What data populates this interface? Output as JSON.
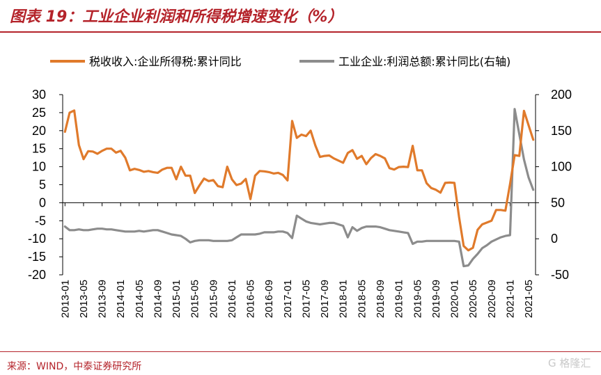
{
  "title": "图表 19：工业企业利润和所得税增速变化（%）",
  "source": "来源：WIND，中泰证券研究所",
  "watermark": "G 格隆汇",
  "colors": {
    "series_tax": "#e07a2b",
    "series_profit": "#8c8c8c",
    "accent": "#b4232a"
  },
  "chart_data": {
    "type": "line",
    "title": "",
    "xlabel": "",
    "ylabel": "",
    "y_left": {
      "lim": [
        -20,
        30
      ],
      "ticks": [
        -20,
        -15,
        -10,
        -5,
        0,
        5,
        10,
        15,
        20,
        25,
        30
      ]
    },
    "y_right": {
      "lim": [
        -50,
        200
      ],
      "ticks": [
        -50,
        0,
        50,
        100,
        150,
        200
      ]
    },
    "x_tick_labels": [
      "2013-01",
      "2013-05",
      "2013-09",
      "2014-01",
      "2014-05",
      "2014-09",
      "2015-01",
      "2015-05",
      "2015-09",
      "2016-01",
      "2016-05",
      "2016-09",
      "2017-01",
      "2017-05",
      "2017-09",
      "2018-01",
      "2018-05",
      "2018-09",
      "2019-01",
      "2019-05",
      "2019-09",
      "2020-01",
      "2020-05",
      "2020-09",
      "2021-01",
      "2021-05"
    ],
    "legend_position": "top",
    "series": [
      {
        "name": "税收收入:企业所得税:累计同比",
        "axis": "left",
        "x": [
          "2013-01",
          "2013-02",
          "2013-03",
          "2013-04",
          "2013-05",
          "2013-06",
          "2013-07",
          "2013-08",
          "2013-09",
          "2013-10",
          "2013-11",
          "2013-12",
          "2014-01",
          "2014-02",
          "2014-03",
          "2014-04",
          "2014-05",
          "2014-06",
          "2014-07",
          "2014-08",
          "2014-09",
          "2014-10",
          "2014-11",
          "2014-12",
          "2015-01",
          "2015-02",
          "2015-03",
          "2015-04",
          "2015-05",
          "2015-06",
          "2015-07",
          "2015-08",
          "2015-09",
          "2015-10",
          "2015-11",
          "2015-12",
          "2016-01",
          "2016-02",
          "2016-03",
          "2016-04",
          "2016-05",
          "2016-06",
          "2016-07",
          "2016-08",
          "2016-09",
          "2016-10",
          "2016-11",
          "2016-12",
          "2017-01",
          "2017-02",
          "2017-03",
          "2017-04",
          "2017-05",
          "2017-06",
          "2017-07",
          "2017-08",
          "2017-09",
          "2017-10",
          "2017-11",
          "2017-12",
          "2018-01",
          "2018-02",
          "2018-03",
          "2018-04",
          "2018-05",
          "2018-06",
          "2018-07",
          "2018-08",
          "2018-09",
          "2018-10",
          "2018-11",
          "2018-12",
          "2019-01",
          "2019-02",
          "2019-03",
          "2019-04",
          "2019-05",
          "2019-06",
          "2019-07",
          "2019-08",
          "2019-09",
          "2019-10",
          "2019-11",
          "2019-12",
          "2020-01",
          "2020-02",
          "2020-03",
          "2020-04",
          "2020-05",
          "2020-06",
          "2020-07",
          "2020-08",
          "2020-09",
          "2020-10",
          "2020-11",
          "2020-12",
          "2021-01",
          "2021-02",
          "2021-03",
          "2021-04",
          "2021-05",
          "2021-06"
        ],
        "values": [
          19.7,
          25.0,
          25.6,
          16.0,
          12.1,
          14.3,
          14.2,
          13.6,
          14.4,
          15.0,
          15.0,
          13.9,
          14.4,
          12.5,
          9.0,
          9.4,
          9.1,
          8.6,
          8.8,
          8.5,
          8.3,
          9.2,
          9.7,
          9.7,
          6.5,
          10.0,
          7.5,
          7.5,
          2.7,
          4.8,
          6.7,
          6.0,
          6.3,
          4.6,
          4.3,
          10.0,
          6.5,
          4.9,
          5.3,
          6.6,
          1.0,
          7.5,
          8.8,
          8.7,
          8.5,
          8.1,
          8.3,
          7.7,
          6.2,
          22.7,
          18.0,
          18.9,
          18.5,
          20.0,
          15.9,
          12.7,
          13.0,
          13.1,
          12.3,
          11.7,
          11.1,
          13.8,
          14.6,
          12.2,
          13.0,
          10.7,
          12.4,
          13.5,
          13.0,
          12.3,
          9.6,
          9.2,
          9.9,
          10.0,
          9.9,
          15.8,
          9.0,
          9.0,
          5.4,
          4.1,
          3.6,
          2.8,
          5.5,
          5.6,
          5.5,
          -4.0,
          -12.0,
          -13.2,
          -12.5,
          -7.5,
          -6.0,
          -5.5,
          -5.0,
          -2.0,
          -2.0,
          -2.2,
          5.2,
          13.2,
          13.0,
          25.5,
          21.5,
          17.5
        ]
      },
      {
        "name": "工业企业:利润总额:累计同比(右轴)",
        "axis": "right",
        "x": [
          "2013-01",
          "2013-02",
          "2013-03",
          "2013-04",
          "2013-05",
          "2013-06",
          "2013-07",
          "2013-08",
          "2013-09",
          "2013-10",
          "2013-11",
          "2013-12",
          "2014-01",
          "2014-02",
          "2014-03",
          "2014-04",
          "2014-05",
          "2014-06",
          "2014-07",
          "2014-08",
          "2014-09",
          "2014-10",
          "2014-11",
          "2014-12",
          "2015-01",
          "2015-02",
          "2015-03",
          "2015-04",
          "2015-05",
          "2015-06",
          "2015-07",
          "2015-08",
          "2015-09",
          "2015-10",
          "2015-11",
          "2015-12",
          "2016-01",
          "2016-02",
          "2016-03",
          "2016-04",
          "2016-05",
          "2016-06",
          "2016-07",
          "2016-08",
          "2016-09",
          "2016-10",
          "2016-11",
          "2016-12",
          "2017-01",
          "2017-02",
          "2017-03",
          "2017-04",
          "2017-05",
          "2017-06",
          "2017-07",
          "2017-08",
          "2017-09",
          "2017-10",
          "2017-11",
          "2017-12",
          "2018-01",
          "2018-02",
          "2018-03",
          "2018-04",
          "2018-05",
          "2018-06",
          "2018-07",
          "2018-08",
          "2018-09",
          "2018-10",
          "2018-11",
          "2018-12",
          "2019-01",
          "2019-02",
          "2019-03",
          "2019-04",
          "2019-05",
          "2019-06",
          "2019-07",
          "2019-08",
          "2019-09",
          "2019-10",
          "2019-11",
          "2019-12",
          "2020-01",
          "2020-02",
          "2020-03",
          "2020-04",
          "2020-05",
          "2020-06",
          "2020-07",
          "2020-08",
          "2020-09",
          "2020-10",
          "2020-11",
          "2020-12",
          "2021-01",
          "2021-02",
          "2021-03",
          "2021-04",
          "2021-05",
          "2021-06"
        ],
        "values": [
          17,
          12,
          12,
          13,
          12,
          12,
          13,
          14,
          14,
          13,
          13,
          12,
          11,
          10,
          10,
          10,
          11,
          10,
          11,
          12,
          12,
          10,
          8,
          6,
          5,
          4,
          0,
          -5,
          -3,
          -2,
          -2,
          -2,
          -3,
          -3,
          -3,
          -3,
          -2,
          2,
          6,
          6,
          6,
          6,
          7,
          9,
          9,
          9,
          10,
          10,
          8,
          1,
          32,
          28,
          24,
          22,
          21,
          20,
          21,
          22,
          22,
          20,
          18,
          2,
          16,
          11,
          15,
          17,
          17,
          17,
          16,
          14,
          12,
          11,
          10,
          9,
          8,
          -7,
          -4,
          -4,
          -3,
          -3,
          -3,
          -3,
          -3,
          -3,
          -3,
          -4,
          -38,
          -37,
          -28,
          -21,
          -13,
          -9,
          -4,
          -1,
          2,
          4,
          5,
          180,
          145,
          110,
          85,
          68
        ]
      }
    ]
  }
}
